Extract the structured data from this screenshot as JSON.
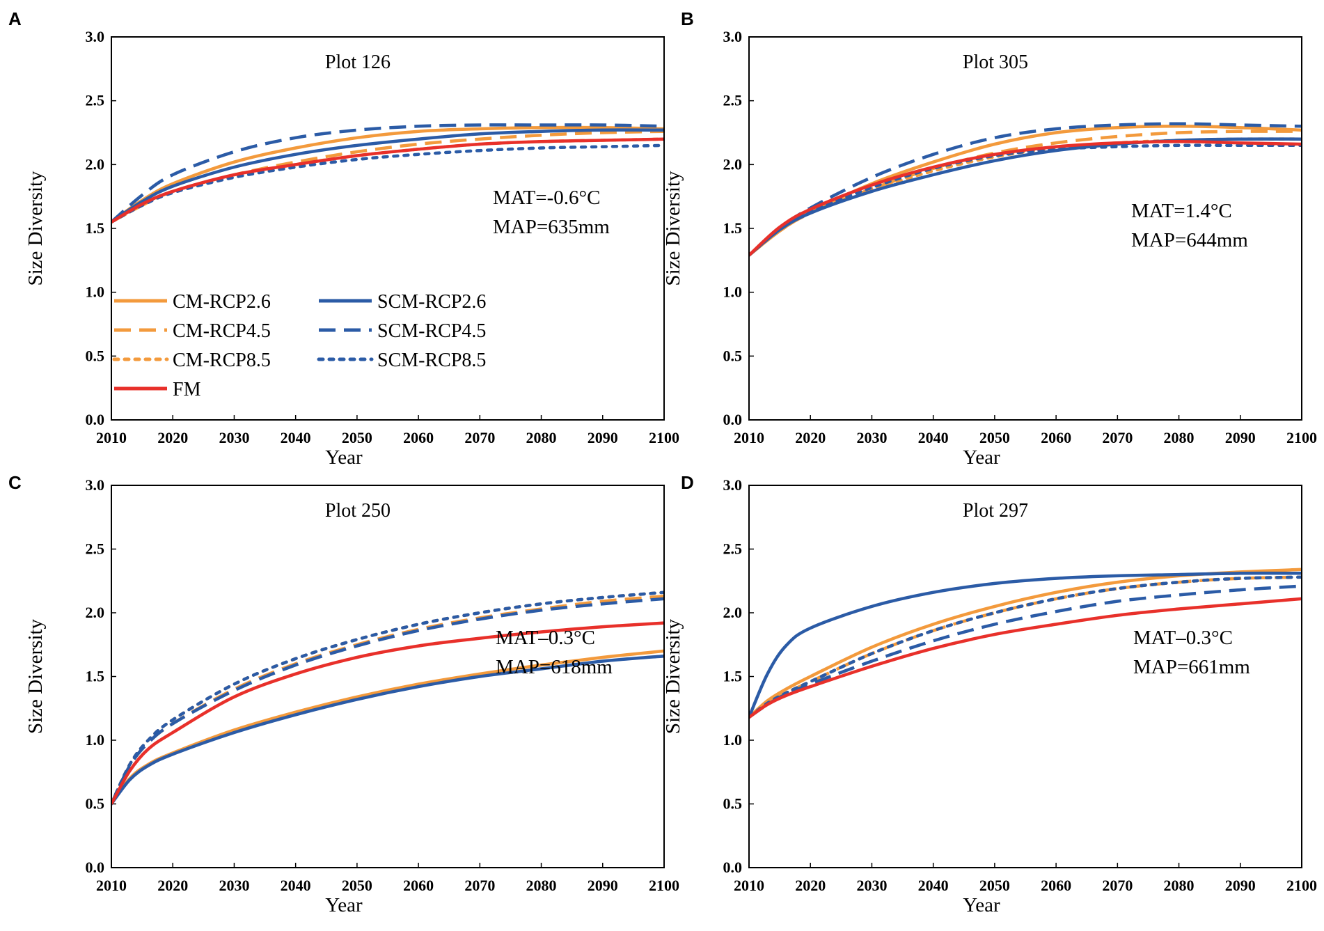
{
  "series_styles": {
    "CM-RCP2.6": {
      "color": "#F39A3C",
      "dash": "solid"
    },
    "CM-RCP4.5": {
      "color": "#F39A3C",
      "dash": "dash"
    },
    "CM-RCP8.5": {
      "color": "#F39A3C",
      "dash": "dot"
    },
    "SCM-RCP2.6": {
      "color": "#2B5BA6",
      "dash": "solid"
    },
    "SCM-RCP4.5": {
      "color": "#2B5BA6",
      "dash": "dash"
    },
    "SCM-RCP8.5": {
      "color": "#2B5BA6",
      "dash": "dot"
    },
    "FM": {
      "color": "#E8302A",
      "dash": "solid"
    }
  },
  "legend": {
    "items": [
      {
        "label": "CM-RCP2.6",
        "series": "CM-RCP2.6"
      },
      {
        "label": "SCM-RCP2.6",
        "series": "SCM-RCP2.6"
      },
      {
        "label": "CM-RCP4.5",
        "series": "CM-RCP4.5"
      },
      {
        "label": "SCM-RCP4.5",
        "series": "SCM-RCP4.5"
      },
      {
        "label": "CM-RCP8.5",
        "series": "CM-RCP8.5"
      },
      {
        "label": "SCM-RCP8.5",
        "series": "SCM-RCP8.5"
      },
      {
        "label": "FM",
        "series": "FM"
      }
    ]
  },
  "chart_data": [
    {
      "type": "line",
      "panel": "A",
      "title": "Plot 126",
      "xlabel": "Year",
      "ylabel": "Size Diversity",
      "xlim": [
        2010,
        2100
      ],
      "ylim": [
        0.0,
        3.0
      ],
      "xticks": [
        "2010",
        "2020",
        "2030",
        "2040",
        "2050",
        "2060",
        "2070",
        "2080",
        "2090",
        "2100"
      ],
      "yticks": [
        "0.0",
        "0.5",
        "1.0",
        "1.5",
        "2.0",
        "2.5",
        "3.0"
      ],
      "annotations": [
        "MAT=-0.6°C",
        "MAP=635mm"
      ],
      "x": [
        2010,
        2015,
        2020,
        2030,
        2040,
        2050,
        2060,
        2070,
        2080,
        2090,
        2100
      ],
      "series": [
        {
          "name": "CM-RCP2.6",
          "values": [
            1.55,
            1.72,
            1.85,
            2.02,
            2.13,
            2.21,
            2.26,
            2.28,
            2.29,
            2.29,
            2.28
          ]
        },
        {
          "name": "CM-RCP4.5",
          "values": [
            1.55,
            1.68,
            1.79,
            1.92,
            2.02,
            2.1,
            2.16,
            2.2,
            2.23,
            2.25,
            2.26
          ]
        },
        {
          "name": "CM-RCP8.5",
          "values": [
            1.55,
            1.68,
            1.79,
            1.91,
            2.0,
            2.07,
            2.12,
            2.16,
            2.18,
            2.19,
            2.2
          ]
        },
        {
          "name": "SCM-RCP2.6",
          "values": [
            1.55,
            1.71,
            1.83,
            1.98,
            2.08,
            2.15,
            2.2,
            2.24,
            2.26,
            2.27,
            2.27
          ]
        },
        {
          "name": "SCM-RCP4.5",
          "values": [
            1.55,
            1.76,
            1.92,
            2.1,
            2.21,
            2.27,
            2.3,
            2.31,
            2.31,
            2.31,
            2.3
          ]
        },
        {
          "name": "SCM-RCP8.5",
          "values": [
            1.55,
            1.68,
            1.78,
            1.9,
            1.98,
            2.04,
            2.08,
            2.11,
            2.13,
            2.14,
            2.15
          ]
        },
        {
          "name": "FM",
          "values": [
            1.55,
            1.69,
            1.79,
            1.92,
            2.0,
            2.07,
            2.12,
            2.16,
            2.18,
            2.19,
            2.2
          ]
        }
      ]
    },
    {
      "type": "line",
      "panel": "B",
      "title": "Plot 305",
      "xlabel": "Year",
      "ylabel": "Size Diversity",
      "xlim": [
        2010,
        2100
      ],
      "ylim": [
        0.0,
        3.0
      ],
      "xticks": [
        "2010",
        "2020",
        "2030",
        "2040",
        "2050",
        "2060",
        "2070",
        "2080",
        "2090",
        "2100"
      ],
      "yticks": [
        "0.0",
        "0.5",
        "1.0",
        "1.5",
        "2.0",
        "2.5",
        "3.0"
      ],
      "annotations": [
        "MAT=1.4°C",
        "MAP=644mm"
      ],
      "x": [
        2010,
        2015,
        2020,
        2030,
        2040,
        2050,
        2060,
        2070,
        2080,
        2090,
        2100
      ],
      "series": [
        {
          "name": "CM-RCP2.6",
          "values": [
            1.29,
            1.48,
            1.63,
            1.85,
            2.02,
            2.16,
            2.25,
            2.29,
            2.3,
            2.29,
            2.27
          ]
        },
        {
          "name": "CM-RCP4.5",
          "values": [
            1.29,
            1.48,
            1.62,
            1.81,
            1.97,
            2.09,
            2.17,
            2.22,
            2.25,
            2.26,
            2.26
          ]
        },
        {
          "name": "CM-RCP8.5",
          "values": [
            1.29,
            1.48,
            1.62,
            1.8,
            1.95,
            2.06,
            2.13,
            2.17,
            2.19,
            2.2,
            2.2
          ]
        },
        {
          "name": "SCM-RCP2.6",
          "values": [
            1.29,
            1.49,
            1.62,
            1.79,
            1.92,
            2.03,
            2.11,
            2.16,
            2.19,
            2.2,
            2.2
          ]
        },
        {
          "name": "SCM-RCP4.5",
          "values": [
            1.29,
            1.5,
            1.66,
            1.9,
            2.08,
            2.21,
            2.28,
            2.31,
            2.32,
            2.31,
            2.3
          ]
        },
        {
          "name": "SCM-RCP8.5",
          "values": [
            1.29,
            1.49,
            1.63,
            1.82,
            1.97,
            2.07,
            2.12,
            2.14,
            2.15,
            2.15,
            2.15
          ]
        },
        {
          "name": "FM",
          "values": [
            1.29,
            1.51,
            1.65,
            1.84,
            1.98,
            2.08,
            2.14,
            2.17,
            2.18,
            2.17,
            2.16
          ]
        }
      ]
    },
    {
      "type": "line",
      "panel": "C",
      "title": "Plot 250",
      "xlabel": "Year",
      "ylabel": "Size Diversity",
      "xlim": [
        2010,
        2100
      ],
      "ylim": [
        0.0,
        3.0
      ],
      "xticks": [
        "2010",
        "2020",
        "2030",
        "2040",
        "2050",
        "2060",
        "2070",
        "2080",
        "2090",
        "2100"
      ],
      "yticks": [
        "0.0",
        "0.5",
        "1.0",
        "1.5",
        "2.0",
        "2.5",
        "3.0"
      ],
      "annotations": [
        "MAT–0.3°C",
        "MAP=618mm"
      ],
      "x": [
        2010,
        2013,
        2016,
        2020,
        2030,
        2040,
        2050,
        2060,
        2070,
        2080,
        2090,
        2100
      ],
      "series": [
        {
          "name": "CM-RCP2.6",
          "values": [
            0.5,
            0.7,
            0.81,
            0.9,
            1.08,
            1.22,
            1.34,
            1.44,
            1.52,
            1.59,
            1.65,
            1.7
          ]
        },
        {
          "name": "CM-RCP4.5",
          "values": [
            0.5,
            0.8,
            0.98,
            1.13,
            1.4,
            1.6,
            1.75,
            1.87,
            1.96,
            2.03,
            2.09,
            2.13
          ]
        },
        {
          "name": "CM-RCP8.5",
          "values": [
            0.5,
            0.81,
            1.0,
            1.16,
            1.44,
            1.64,
            1.79,
            1.91,
            2.0,
            2.07,
            2.12,
            2.16
          ]
        },
        {
          "name": "SCM-RCP2.6",
          "values": [
            0.5,
            0.69,
            0.8,
            0.89,
            1.06,
            1.2,
            1.32,
            1.42,
            1.5,
            1.56,
            1.62,
            1.66
          ]
        },
        {
          "name": "SCM-RCP4.5",
          "values": [
            0.5,
            0.8,
            0.98,
            1.13,
            1.39,
            1.59,
            1.74,
            1.86,
            1.95,
            2.02,
            2.07,
            2.11
          ]
        },
        {
          "name": "SCM-RCP8.5",
          "values": [
            0.5,
            0.81,
            1.0,
            1.16,
            1.44,
            1.64,
            1.79,
            1.91,
            2.0,
            2.07,
            2.12,
            2.16
          ]
        },
        {
          "name": "FM",
          "values": [
            0.5,
            0.76,
            0.93,
            1.06,
            1.34,
            1.52,
            1.65,
            1.74,
            1.8,
            1.85,
            1.89,
            1.92
          ]
        }
      ]
    },
    {
      "type": "line",
      "panel": "D",
      "title": "Plot 297",
      "xlabel": "Year",
      "ylabel": "Size Diversity",
      "xlim": [
        2010,
        2100
      ],
      "ylim": [
        0.0,
        3.0
      ],
      "xticks": [
        "2010",
        "2020",
        "2030",
        "2040",
        "2050",
        "2060",
        "2070",
        "2080",
        "2090",
        "2100"
      ],
      "yticks": [
        "0.0",
        "0.5",
        "1.0",
        "1.5",
        "2.0",
        "2.5",
        "3.0"
      ],
      "annotations": [
        "MAT–0.3°C",
        "MAP=661mm"
      ],
      "x": [
        2010,
        2013,
        2016,
        2020,
        2030,
        2040,
        2050,
        2060,
        2070,
        2080,
        2090,
        2100
      ],
      "series": [
        {
          "name": "CM-RCP2.6",
          "values": [
            1.18,
            1.31,
            1.4,
            1.5,
            1.73,
            1.91,
            2.05,
            2.16,
            2.24,
            2.29,
            2.32,
            2.34
          ]
        },
        {
          "name": "CM-RCP4.5",
          "values": [
            1.18,
            1.29,
            1.37,
            1.46,
            1.68,
            1.86,
            2.0,
            2.11,
            2.19,
            2.24,
            2.27,
            2.28
          ]
        },
        {
          "name": "CM-RCP8.5",
          "values": [
            1.18,
            1.29,
            1.37,
            1.46,
            1.68,
            1.86,
            2.0,
            2.11,
            2.19,
            2.24,
            2.27,
            2.28
          ]
        },
        {
          "name": "SCM-RCP2.6",
          "values": [
            1.18,
            1.52,
            1.74,
            1.88,
            2.05,
            2.16,
            2.23,
            2.27,
            2.29,
            2.3,
            2.31,
            2.31
          ]
        },
        {
          "name": "SCM-RCP4.5",
          "values": [
            1.18,
            1.28,
            1.36,
            1.44,
            1.62,
            1.78,
            1.91,
            2.01,
            2.09,
            2.14,
            2.18,
            2.21
          ]
        },
        {
          "name": "SCM-RCP8.5",
          "values": [
            1.18,
            1.29,
            1.37,
            1.46,
            1.68,
            1.86,
            2.0,
            2.11,
            2.19,
            2.24,
            2.27,
            2.28
          ]
        },
        {
          "name": "FM",
          "values": [
            1.18,
            1.28,
            1.35,
            1.42,
            1.58,
            1.72,
            1.83,
            1.91,
            1.98,
            2.03,
            2.07,
            2.11
          ]
        }
      ]
    }
  ]
}
